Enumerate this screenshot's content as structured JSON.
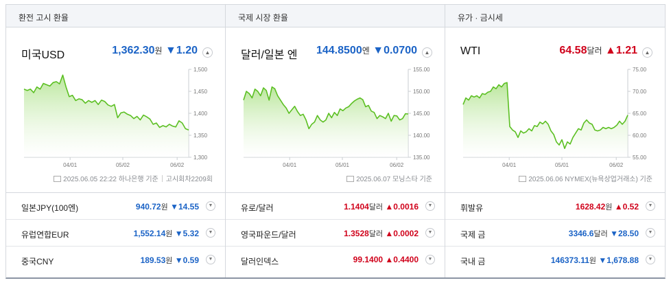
{
  "columns": [
    {
      "header": "환전 고시 환율",
      "main": {
        "name": "미국USD",
        "value": "1,362.30",
        "unit": "원",
        "change": "1.20",
        "direction": "down",
        "arrow": "▼",
        "source": "2025.06.05 22:22 하나은행 기준",
        "source_extra": "고시회차2209회",
        "y_ticks": [
          "1,500",
          "1,450",
          "1,400",
          "1,350",
          "1,300"
        ],
        "x_ticks": [
          "04/01",
          "05/02",
          "06/02"
        ]
      },
      "rows": [
        {
          "name": "일본JPY(100엔)",
          "value": "940.72",
          "unit": "원",
          "arrow": "▼",
          "change": "14.55",
          "direction": "down"
        },
        {
          "name": "유럽연합EUR",
          "value": "1,552.14",
          "unit": "원",
          "arrow": "▼",
          "change": "5.32",
          "direction": "down"
        },
        {
          "name": "중국CNY",
          "value": "189.53",
          "unit": "원",
          "arrow": "▼",
          "change": "0.59",
          "direction": "down"
        }
      ]
    },
    {
      "header": "국제 시장 환율",
      "main": {
        "name": "달러/일본 엔",
        "value": "144.8500",
        "unit": "엔",
        "change": "0.0700",
        "direction": "down",
        "arrow": "▼",
        "source": "2025.06.07 모닝스타 기준",
        "source_extra": "",
        "y_ticks": [
          "155.00",
          "150.00",
          "145.00",
          "140.00",
          "135.00"
        ],
        "x_ticks": [
          "04/01",
          "05/01",
          "06/02"
        ]
      },
      "rows": [
        {
          "name": "유로/달러",
          "value": "1.1404",
          "unit": "달러",
          "arrow": "▲",
          "change": "0.0016",
          "direction": "up"
        },
        {
          "name": "영국파운드/달러",
          "value": "1.3528",
          "unit": "달러",
          "arrow": "▲",
          "change": "0.0002",
          "direction": "up"
        },
        {
          "name": "달러인덱스",
          "value": "99.1400",
          "unit": "",
          "arrow": "▲",
          "change": "0.4400",
          "direction": "up"
        }
      ]
    },
    {
      "header": "유가 · 금시세",
      "main": {
        "name": "WTI",
        "value": "64.58",
        "unit": "달러",
        "change": "1.21",
        "direction": "up",
        "arrow": "▲",
        "source": "2025.06.06 NYMEX(뉴욕상업거래소) 기준",
        "source_extra": "",
        "y_ticks": [
          "75.00",
          "70.00",
          "65.00",
          "60.00",
          "55.00"
        ],
        "x_ticks": [
          "04/01",
          "05/01",
          "06/02"
        ]
      },
      "rows": [
        {
          "name": "휘발유",
          "value": "1628.42",
          "unit": "원",
          "arrow": "▲",
          "change": "0.52",
          "direction": "up"
        },
        {
          "name": "국제 금",
          "value": "3346.6",
          "unit": "달러",
          "arrow": "▼",
          "change": "28.50",
          "direction": "down"
        },
        {
          "name": "국내 금",
          "value": "146373.11",
          "unit": "원",
          "arrow": "▼",
          "change": "1,678.88",
          "direction": "down"
        }
      ]
    }
  ],
  "icons": {
    "collapse": "chevron-up-icon",
    "expand": "chevron-down-icon",
    "source": "document-icon"
  },
  "colors": {
    "up": "#d0021b",
    "down": "#1b63c6",
    "line": "#5bbf22",
    "fill": "#cdeeb6"
  },
  "chart_data": [
    {
      "type": "area",
      "ylim": [
        1300,
        1500
      ],
      "x_ticks": [
        "04/01",
        "05/02",
        "06/02"
      ],
      "y_ticks": [
        1500,
        1450,
        1400,
        1350,
        1300
      ],
      "values": [
        1455,
        1452,
        1455,
        1447,
        1460,
        1455,
        1468,
        1465,
        1462,
        1470,
        1472,
        1467,
        1487,
        1460,
        1438,
        1441,
        1429,
        1433,
        1431,
        1423,
        1429,
        1425,
        1429,
        1420,
        1430,
        1427,
        1419,
        1416,
        1420,
        1390,
        1401,
        1403,
        1398,
        1395,
        1388,
        1393,
        1385,
        1396,
        1392,
        1387,
        1375,
        1378,
        1368,
        1372,
        1369,
        1375,
        1371,
        1369,
        1383,
        1378,
        1365,
        1362
      ]
    },
    {
      "type": "area",
      "ylim": [
        135,
        155
      ],
      "x_ticks": [
        "04/01",
        "05/01",
        "06/02"
      ],
      "y_ticks": [
        155,
        150,
        145,
        140,
        135
      ],
      "values": [
        148,
        150,
        149.5,
        148.5,
        150.5,
        150,
        149,
        150.8,
        150.2,
        148,
        151,
        150.6,
        149,
        148,
        147,
        146.2,
        145,
        145.8,
        146.6,
        145.4,
        144.5,
        144.8,
        143.5,
        141.5,
        142.5,
        143,
        144.5,
        143.5,
        143,
        143.5,
        145,
        144,
        145.2,
        144.5,
        146,
        145.6,
        146.2,
        146.5,
        147.2,
        147.8,
        148.2,
        148.5,
        148.1,
        146.5,
        146.8,
        145.5,
        145.2,
        143.8,
        144.5,
        144.2,
        143.8,
        145,
        143.2,
        144.5,
        144.4,
        143.5,
        143.8,
        144.9,
        144.85
      ]
    },
    {
      "type": "area",
      "ylim": [
        55,
        75
      ],
      "x_ticks": [
        "04/01",
        "05/01",
        "06/02"
      ],
      "y_ticks": [
        75,
        70,
        65,
        60,
        55
      ],
      "values": [
        67,
        68.5,
        68,
        69,
        68.7,
        69,
        68.5,
        69.5,
        69.3,
        69.8,
        70,
        71,
        70.6,
        71.5,
        71,
        71.8,
        72,
        62,
        61.2,
        60.8,
        59.5,
        61,
        60.5,
        60.8,
        61.5,
        61,
        62.2,
        62,
        63,
        62.6,
        63.2,
        62.5,
        61,
        60.2,
        58.5,
        57.8,
        59,
        57,
        58.5,
        58,
        59.5,
        60.5,
        61.5,
        61.2,
        62.8,
        63.5,
        62.8,
        62.5,
        61.2,
        61,
        61.2,
        61.8,
        61.5,
        61.8,
        61.5,
        61.8,
        62.3,
        63.2,
        62.5,
        63.2,
        64.6
      ]
    }
  ]
}
